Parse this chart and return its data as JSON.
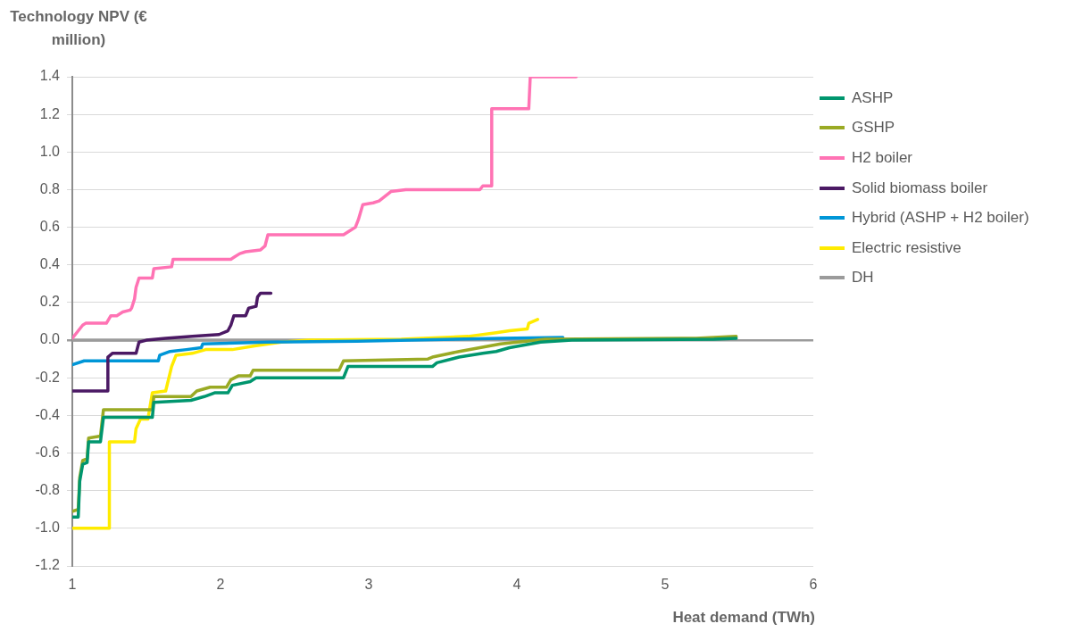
{
  "chart_data": {
    "type": "line",
    "xlabel": "Heat demand (TWh)",
    "ylabel": "Technology NPV (€ million)",
    "xlim": [
      1,
      6
    ],
    "xticks": [
      1,
      2,
      3,
      4,
      5,
      6
    ],
    "ylim": [
      -1.2,
      1.4
    ],
    "yticks": [
      -1.2,
      {
        "value": -1,
        "label": "-1.0"
      },
      -0.8,
      -0.6,
      -0.4,
      -0.2,
      {
        "value": 0,
        "label": "0.0"
      },
      0.2,
      0.4,
      0.6,
      0.8,
      {
        "value": 1,
        "label": "1.0"
      },
      1.2,
      1.4
    ],
    "grid": "y",
    "legend": "top right",
    "marker": "none",
    "line_style": "solid",
    "series": [
      {
        "name": "ASHP",
        "color": "#00966e",
        "x": [
          1,
          1.04,
          1.05,
          1.07,
          1.1,
          1.11,
          1.19,
          1.21,
          1.54,
          1.55,
          1.8,
          1.89,
          1.96,
          2.05,
          2.08,
          2.2,
          2.24,
          2.83,
          2.86,
          3.43,
          3.46,
          3.61,
          3.77,
          3.86,
          3.95,
          4.16,
          4.37,
          5.33,
          5.48
        ],
        "values": [
          -0.94,
          -0.94,
          -0.75,
          -0.66,
          -0.65,
          -0.54,
          -0.54,
          -0.41,
          -0.41,
          -0.33,
          -0.32,
          -0.3,
          -0.28,
          -0.28,
          -0.24,
          -0.22,
          -0.2,
          -0.2,
          -0.14,
          -0.14,
          -0.12,
          -0.09,
          -0.07,
          -0.06,
          -0.04,
          -0.01,
          0,
          0.005,
          0.01
        ]
      },
      {
        "name": "GSHP",
        "color": "#9aaa24",
        "x": [
          1,
          1.04,
          1.05,
          1.07,
          1.1,
          1.11,
          1.19,
          1.21,
          1.54,
          1.55,
          1.8,
          1.84,
          1.93,
          2.04,
          2.07,
          2.12,
          2.2,
          2.22,
          2.8,
          2.83,
          3.4,
          3.43,
          3.61,
          3.89,
          4.19,
          5.21,
          5.48
        ],
        "values": [
          -0.91,
          -0.9,
          -0.73,
          -0.64,
          -0.63,
          -0.52,
          -0.51,
          -0.37,
          -0.37,
          -0.3,
          -0.3,
          -0.27,
          -0.25,
          -0.25,
          -0.21,
          -0.19,
          -0.19,
          -0.16,
          -0.16,
          -0.11,
          -0.1,
          -0.09,
          -0.06,
          -0.02,
          0.005,
          0.01,
          0.02
        ]
      },
      {
        "name": "H2 boiler",
        "color": "#ff73b4",
        "x": [
          1,
          1.07,
          1.09,
          1.23,
          1.26,
          1.3,
          1.34,
          1.39,
          1.4,
          1.42,
          1.43,
          1.45,
          1.54,
          1.55,
          1.67,
          1.68,
          2.07,
          2.09,
          2.13,
          2.17,
          2.27,
          2.3,
          2.32,
          2.83,
          2.87,
          2.91,
          2.93,
          2.96,
          3.03,
          3.07,
          3.15,
          3.25,
          3.75,
          3.77,
          3.83,
          3.83,
          4.08,
          4.09,
          4.4
        ],
        "values": [
          0.01,
          0.08,
          0.09,
          0.09,
          0.13,
          0.13,
          0.15,
          0.16,
          0.17,
          0.22,
          0.28,
          0.33,
          0.33,
          0.38,
          0.39,
          0.43,
          0.43,
          0.44,
          0.46,
          0.47,
          0.48,
          0.5,
          0.56,
          0.56,
          0.58,
          0.6,
          0.64,
          0.72,
          0.73,
          0.74,
          0.79,
          0.8,
          0.8,
          0.82,
          0.82,
          1.23,
          1.23,
          1.4,
          1.4
        ]
      },
      {
        "name": "Solid biomass boiler",
        "color": "#4b1964",
        "x": [
          1,
          1.24,
          1.24,
          1.27,
          1.43,
          1.45,
          1.5,
          1.63,
          1.81,
          1.99,
          2.05,
          2.07,
          2.09,
          2.17,
          2.19,
          2.24,
          2.25,
          2.27,
          2.34
        ],
        "values": [
          -0.27,
          -0.27,
          -0.09,
          -0.07,
          -0.07,
          -0.01,
          0,
          0.01,
          0.02,
          0.03,
          0.05,
          0.08,
          0.13,
          0.13,
          0.17,
          0.18,
          0.23,
          0.25,
          0.25
        ]
      },
      {
        "name": "Hybrid (ASHP + H2 boiler)",
        "color": "#0096d7",
        "x": [
          1,
          1.08,
          1.58,
          1.59,
          1.66,
          1.77,
          1.87,
          1.88,
          2.32,
          2.92,
          3.89,
          4.31
        ],
        "values": [
          -0.13,
          -0.11,
          -0.11,
          -0.08,
          -0.06,
          -0.05,
          -0.04,
          -0.02,
          -0.01,
          -0.005,
          0.01,
          0.015
        ]
      },
      {
        "name": "Electric resistive",
        "color": "#ffeb00",
        "x": [
          1,
          1.25,
          1.25,
          1.42,
          1.43,
          1.46,
          1.51,
          1.54,
          1.63,
          1.67,
          1.7,
          1.81,
          1.9,
          2.08,
          2.23,
          2.41,
          2.59,
          3.22,
          3.67,
          3.86,
          3.95,
          4.07,
          4.08,
          4.14
        ],
        "values": [
          -1,
          -1,
          -0.54,
          -0.54,
          -0.47,
          -0.42,
          -0.42,
          -0.28,
          -0.27,
          -0.14,
          -0.08,
          -0.07,
          -0.05,
          -0.05,
          -0.03,
          -0.01,
          0,
          0.005,
          0.02,
          0.04,
          0.05,
          0.06,
          0.09,
          0.11
        ]
      },
      {
        "name": "DH",
        "color": "#9b9b9b",
        "x": [
          1,
          3.16
        ],
        "values": [
          0,
          0
        ]
      }
    ]
  }
}
